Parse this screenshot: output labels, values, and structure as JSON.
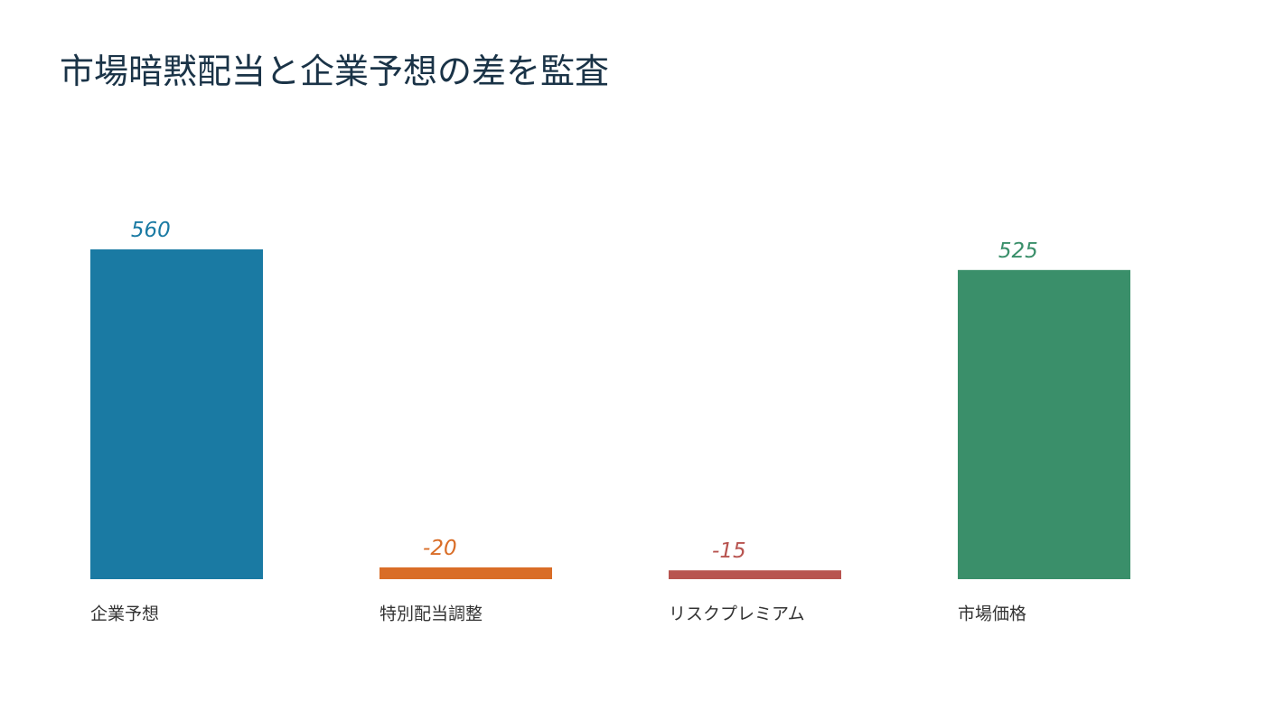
{
  "chart_data": {
    "type": "bar",
    "title": "市場暗黙配当と企業予想の差を監査",
    "categories": [
      "企業予想",
      "特別配当調整",
      "リスクプレミアム",
      "市場価格"
    ],
    "values": [
      560,
      -20,
      -15,
      525
    ],
    "colors": [
      "#1a7aa3",
      "#d96d27",
      "#b85450",
      "#3a8f6a"
    ]
  }
}
